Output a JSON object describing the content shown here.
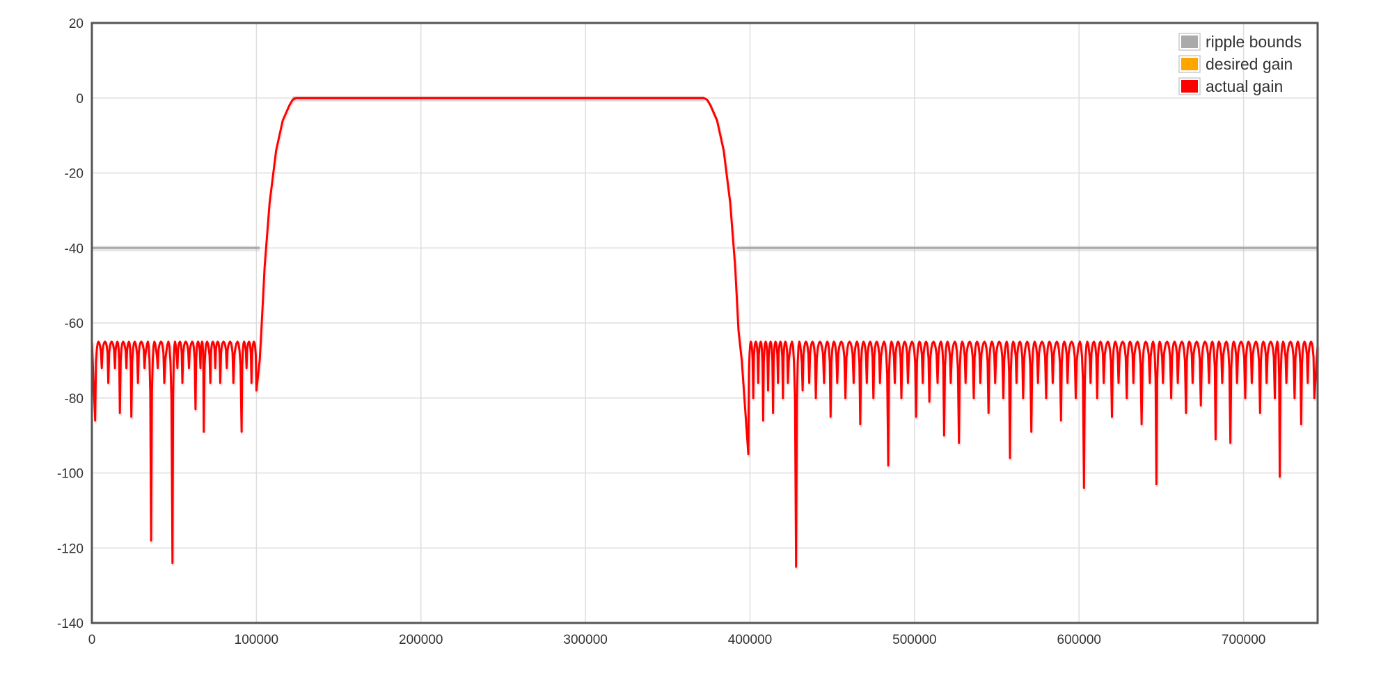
{
  "chart_data": {
    "type": "line",
    "title": "",
    "xlabel": "",
    "ylabel": "",
    "xlim": [
      0,
      745000
    ],
    "ylim": [
      -140,
      20
    ],
    "x_ticks": [
      0,
      100000,
      200000,
      300000,
      400000,
      500000,
      600000,
      700000
    ],
    "y_ticks": [
      20,
      0,
      -20,
      -40,
      -60,
      -80,
      -100,
      -120,
      -140
    ],
    "x_tick_labels": [
      "0",
      "100000",
      "200000",
      "300000",
      "400000",
      "500000",
      "600000",
      "700000"
    ],
    "y_tick_labels": [
      "20",
      "0",
      "-20",
      "-40",
      "-60",
      "-80",
      "-100",
      "-120",
      "-140"
    ],
    "grid": true,
    "legend_position": "top-right",
    "series": [
      {
        "name": "ripple bounds",
        "color": "#aaaaaa",
        "segments": [
          {
            "x": [
              0,
              102000
            ],
            "y": [
              -40,
              -40
            ]
          },
          {
            "x": [
              122000,
              372000
            ],
            "y": [
              0,
              0
            ]
          },
          {
            "x": [
              392000,
              745000
            ],
            "y": [
              -40,
              -40
            ]
          }
        ]
      },
      {
        "name": "desired gain",
        "color": "#ffa500",
        "segments": []
      },
      {
        "name": "actual gain",
        "color": "#ff0000",
        "stopband_ripple_peak": -65,
        "passband_level": 0,
        "transition_edges": [
          {
            "x": [
              102000,
              103000,
              105000,
              108000,
              112000,
              116000,
              120000,
              122000,
              124000
            ],
            "y": [
              -70,
              -62,
              -45,
              -28,
              -14,
              -6,
              -2,
              -0.5,
              0
            ]
          },
          {
            "x": [
              372000,
              374000,
              376000,
              380000,
              384000,
              388000,
              391000,
              393000,
              395000
            ],
            "y": [
              0,
              -0.5,
              -2,
              -6,
              -14,
              -28,
              -45,
              -62,
              -70
            ]
          }
        ],
        "stopband_nulls": [
          {
            "x": 2000,
            "y": -86
          },
          {
            "x": 6000,
            "y": -72
          },
          {
            "x": 10000,
            "y": -76
          },
          {
            "x": 14000,
            "y": -72
          },
          {
            "x": 17000,
            "y": -84
          },
          {
            "x": 21000,
            "y": -72
          },
          {
            "x": 24000,
            "y": -85
          },
          {
            "x": 28000,
            "y": -76
          },
          {
            "x": 32000,
            "y": -72
          },
          {
            "x": 36000,
            "y": -118
          },
          {
            "x": 40000,
            "y": -72
          },
          {
            "x": 44000,
            "y": -76
          },
          {
            "x": 49000,
            "y": -124
          },
          {
            "x": 52000,
            "y": -72
          },
          {
            "x": 55000,
            "y": -76
          },
          {
            "x": 59000,
            "y": -72
          },
          {
            "x": 63000,
            "y": -83
          },
          {
            "x": 66000,
            "y": -72
          },
          {
            "x": 68000,
            "y": -89
          },
          {
            "x": 72000,
            "y": -76
          },
          {
            "x": 75000,
            "y": -72
          },
          {
            "x": 78000,
            "y": -76
          },
          {
            "x": 82000,
            "y": -72
          },
          {
            "x": 86000,
            "y": -76
          },
          {
            "x": 91000,
            "y": -89
          },
          {
            "x": 94000,
            "y": -72
          },
          {
            "x": 97000,
            "y": -76
          },
          {
            "x": 100000,
            "y": -78
          },
          {
            "x": 399000,
            "y": -95
          },
          {
            "x": 402000,
            "y": -80
          },
          {
            "x": 405000,
            "y": -76
          },
          {
            "x": 408000,
            "y": -86
          },
          {
            "x": 411000,
            "y": -78
          },
          {
            "x": 414000,
            "y": -84
          },
          {
            "x": 417000,
            "y": -76
          },
          {
            "x": 420000,
            "y": -80
          },
          {
            "x": 423000,
            "y": -76
          },
          {
            "x": 428000,
            "y": -125
          },
          {
            "x": 432000,
            "y": -78
          },
          {
            "x": 436000,
            "y": -76
          },
          {
            "x": 440000,
            "y": -80
          },
          {
            "x": 445000,
            "y": -76
          },
          {
            "x": 449000,
            "y": -85
          },
          {
            "x": 453000,
            "y": -76
          },
          {
            "x": 458000,
            "y": -80
          },
          {
            "x": 463000,
            "y": -76
          },
          {
            "x": 467000,
            "y": -87
          },
          {
            "x": 471000,
            "y": -76
          },
          {
            "x": 475000,
            "y": -80
          },
          {
            "x": 479000,
            "y": -76
          },
          {
            "x": 484000,
            "y": -98
          },
          {
            "x": 488000,
            "y": -76
          },
          {
            "x": 492000,
            "y": -80
          },
          {
            "x": 496000,
            "y": -76
          },
          {
            "x": 501000,
            "y": -85
          },
          {
            "x": 505000,
            "y": -76
          },
          {
            "x": 509000,
            "y": -81
          },
          {
            "x": 514000,
            "y": -76
          },
          {
            "x": 518000,
            "y": -90
          },
          {
            "x": 522000,
            "y": -76
          },
          {
            "x": 527000,
            "y": -92
          },
          {
            "x": 531000,
            "y": -76
          },
          {
            "x": 536000,
            "y": -80
          },
          {
            "x": 540000,
            "y": -76
          },
          {
            "x": 545000,
            "y": -84
          },
          {
            "x": 549000,
            "y": -76
          },
          {
            "x": 554000,
            "y": -80
          },
          {
            "x": 558000,
            "y": -96
          },
          {
            "x": 562000,
            "y": -76
          },
          {
            "x": 566000,
            "y": -80
          },
          {
            "x": 571000,
            "y": -89
          },
          {
            "x": 575000,
            "y": -76
          },
          {
            "x": 580000,
            "y": -80
          },
          {
            "x": 584000,
            "y": -76
          },
          {
            "x": 589000,
            "y": -86
          },
          {
            "x": 593000,
            "y": -76
          },
          {
            "x": 598000,
            "y": -80
          },
          {
            "x": 603000,
            "y": -104
          },
          {
            "x": 607000,
            "y": -76
          },
          {
            "x": 611000,
            "y": -80
          },
          {
            "x": 615000,
            "y": -76
          },
          {
            "x": 620000,
            "y": -85
          },
          {
            "x": 624000,
            "y": -76
          },
          {
            "x": 629000,
            "y": -80
          },
          {
            "x": 633000,
            "y": -76
          },
          {
            "x": 638000,
            "y": -87
          },
          {
            "x": 643000,
            "y": -76
          },
          {
            "x": 647000,
            "y": -103
          },
          {
            "x": 651000,
            "y": -76
          },
          {
            "x": 656000,
            "y": -80
          },
          {
            "x": 660000,
            "y": -76
          },
          {
            "x": 665000,
            "y": -84
          },
          {
            "x": 669000,
            "y": -76
          },
          {
            "x": 674000,
            "y": -82
          },
          {
            "x": 679000,
            "y": -76
          },
          {
            "x": 683000,
            "y": -91
          },
          {
            "x": 687000,
            "y": -76
          },
          {
            "x": 692000,
            "y": -92
          },
          {
            "x": 696000,
            "y": -76
          },
          {
            "x": 701000,
            "y": -80
          },
          {
            "x": 705000,
            "y": -76
          },
          {
            "x": 710000,
            "y": -84
          },
          {
            "x": 714000,
            "y": -76
          },
          {
            "x": 719000,
            "y": -80
          },
          {
            "x": 722000,
            "y": -101
          },
          {
            "x": 726000,
            "y": -76
          },
          {
            "x": 731000,
            "y": -80
          },
          {
            "x": 735000,
            "y": -87
          },
          {
            "x": 739000,
            "y": -76
          },
          {
            "x": 743000,
            "y": -80
          }
        ]
      }
    ]
  }
}
